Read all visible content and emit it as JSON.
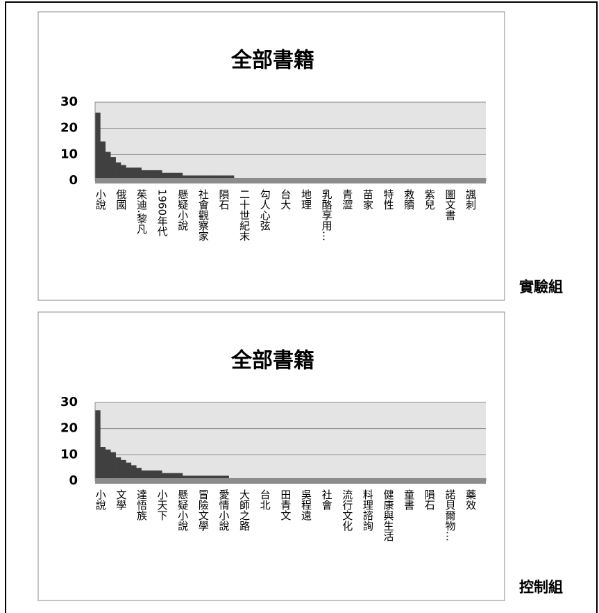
{
  "chart_data": [
    {
      "type": "bar",
      "title": "全部書籍",
      "caption": "實驗組",
      "color": "#404040",
      "grid": true,
      "ylim": [
        0,
        30
      ],
      "yticks": [
        0,
        10,
        20,
        30
      ],
      "categories": [
        "小說",
        null,
        null,
        null,
        "俄國",
        null,
        null,
        null,
        "茱迪.黎凡",
        null,
        null,
        null,
        "1960年代",
        null,
        null,
        null,
        "懸疑小說",
        null,
        null,
        null,
        "社會觀察家",
        null,
        null,
        null,
        "隕石",
        null,
        null,
        null,
        "二十世紀末",
        null,
        null,
        null,
        "勾人心弦",
        null,
        null,
        null,
        "台大",
        null,
        null,
        null,
        "地理",
        null,
        null,
        null,
        "乳酪享用…",
        null,
        null,
        null,
        "青澀",
        null,
        null,
        null,
        "苗家",
        null,
        null,
        null,
        "特性",
        null,
        null,
        null,
        "救贖",
        null,
        null,
        null,
        "紫兒",
        null,
        null,
        null,
        "圖文書",
        null,
        null,
        null,
        "諷刺",
        null,
        null,
        null
      ],
      "values": [
        26,
        15,
        11,
        9,
        7,
        6,
        5,
        5,
        5,
        4,
        4,
        4,
        4,
        3,
        3,
        3,
        3,
        2,
        2,
        2,
        2,
        2,
        2,
        2,
        2,
        2,
        2,
        1,
        1,
        1,
        1,
        1,
        1,
        1,
        1,
        1,
        1,
        1,
        1,
        1,
        1,
        1,
        1,
        1,
        1,
        1,
        1,
        1,
        1,
        1,
        1,
        1,
        1,
        1,
        1,
        1,
        1,
        1,
        1,
        1,
        1,
        1,
        1,
        1,
        1,
        1,
        1,
        1,
        1,
        1,
        1,
        1,
        1,
        1,
        1,
        1
      ]
    },
    {
      "type": "bar",
      "title": "全部書籍",
      "caption": "控制組",
      "color": "#404040",
      "grid": true,
      "ylim": [
        0,
        30
      ],
      "yticks": [
        0,
        10,
        20,
        30
      ],
      "categories": [
        "小說",
        null,
        null,
        null,
        "文學",
        null,
        null,
        null,
        "達悟族",
        null,
        null,
        null,
        "小天下",
        null,
        null,
        null,
        "懸疑小說",
        null,
        null,
        null,
        "冒險文學",
        null,
        null,
        null,
        "愛情小說",
        null,
        null,
        null,
        "大師之路",
        null,
        null,
        null,
        "台北",
        null,
        null,
        null,
        "田青文",
        null,
        null,
        null,
        "吳程遠",
        null,
        null,
        null,
        "社會",
        null,
        null,
        null,
        "流行文化",
        null,
        null,
        null,
        "料理諮詢",
        null,
        null,
        null,
        "健康與生活",
        null,
        null,
        null,
        "童書",
        null,
        null,
        null,
        "隕石",
        null,
        null,
        null,
        "諾貝爾物…",
        null,
        null,
        null,
        "藥效",
        null,
        null,
        null
      ],
      "values": [
        27,
        13,
        12,
        11,
        9,
        8,
        7,
        6,
        5,
        4,
        4,
        4,
        4,
        3,
        3,
        3,
        3,
        2,
        2,
        2,
        2,
        2,
        2,
        2,
        2,
        2,
        1,
        1,
        1,
        1,
        1,
        1,
        1,
        1,
        1,
        1,
        1,
        1,
        1,
        1,
        1,
        1,
        1,
        1,
        1,
        1,
        1,
        1,
        1,
        1,
        1,
        1,
        1,
        1,
        1,
        1,
        1,
        1,
        1,
        1,
        1,
        1,
        1,
        1,
        1,
        1,
        1,
        1,
        1,
        1,
        1,
        1,
        1,
        1,
        1,
        1
      ]
    }
  ]
}
